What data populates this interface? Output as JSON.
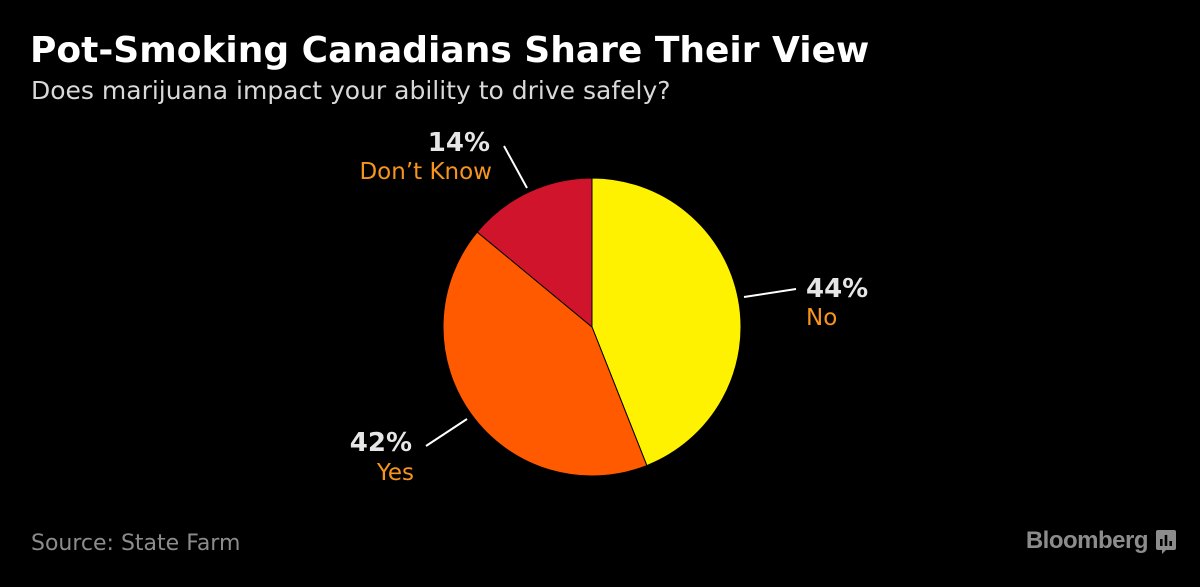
{
  "header": {
    "title": "Pot-Smoking Canadians Share Their View",
    "subtitle": "Does marijuana impact your ability to drive safely?"
  },
  "footer": {
    "source": "Source: State Farm",
    "brand": "Bloomberg",
    "brand_icon": "bloomberg-terminal-icon"
  },
  "chart_data": {
    "type": "pie",
    "title": "Pot-Smoking Canadians Share Their View",
    "subtitle": "Does marijuana impact your ability to drive safely?",
    "slices": [
      {
        "label": "No",
        "value": 44,
        "value_label": "44%",
        "color": "#fff200"
      },
      {
        "label": "Yes",
        "value": 42,
        "value_label": "42%",
        "color": "#ff5a00"
      },
      {
        "label": "Don’t Know",
        "value": 14,
        "value_label": "14%",
        "color": "#d0142c"
      }
    ],
    "start": "12 o'clock",
    "direction": "clockwise",
    "legend": "none",
    "label_color": "#f7941d",
    "value_color": "#e6e6e6"
  }
}
